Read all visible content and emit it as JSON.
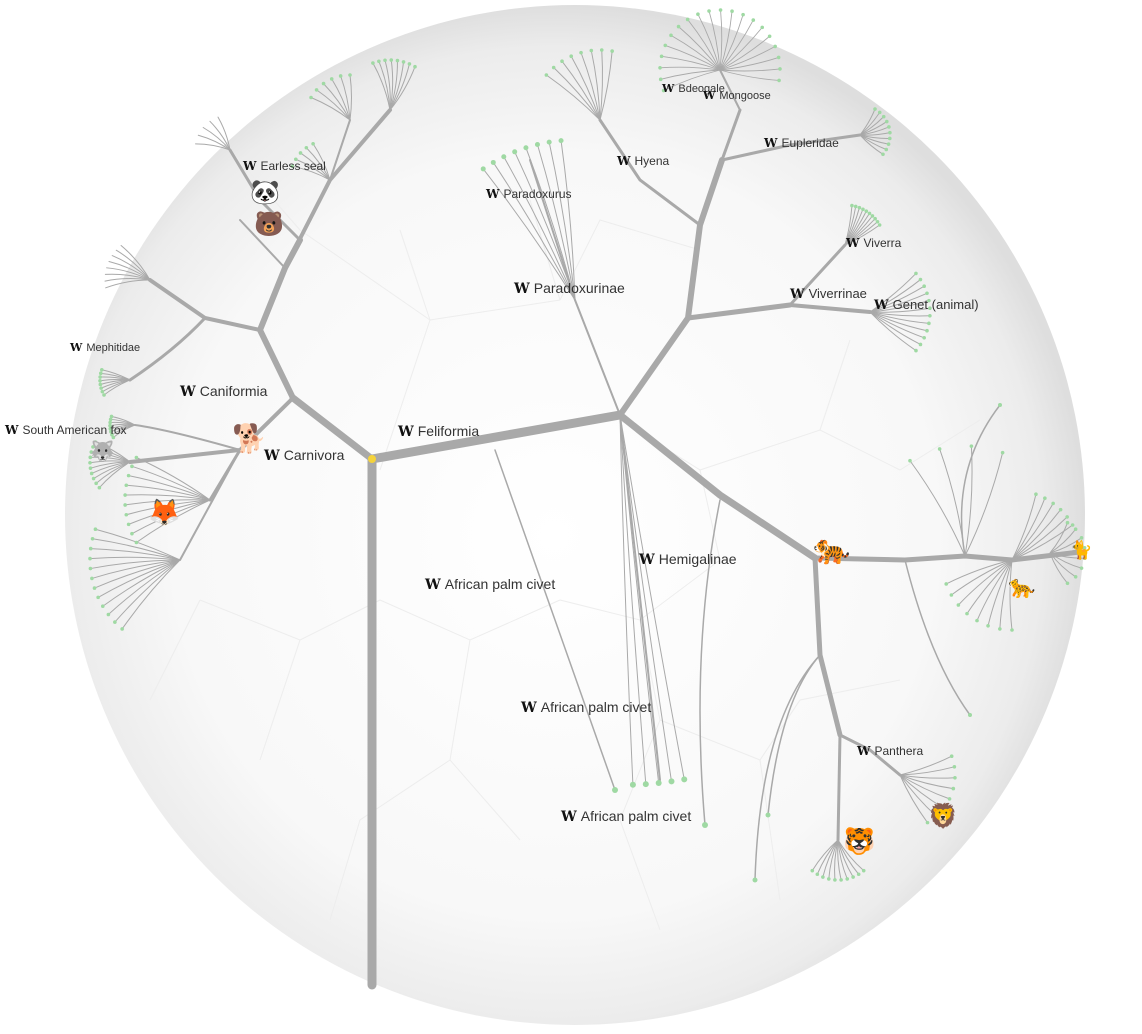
{
  "wiki_mark": "W",
  "labels": {
    "carnivora": "Carnivora",
    "feliformia": "Feliformia",
    "caniformia": "Caniformia",
    "earless_seal": "Earless seal",
    "mephitidae": "Mephitidae",
    "south_american_fox": "South American fox",
    "paradoxurus": "Paradoxurus",
    "paradoxurinae": "Paradoxurinae",
    "hyena": "Hyena",
    "bdeogale": "Bdeogale",
    "mongoose": "Mongoose",
    "eupleridae": "Eupleridae",
    "viverra": "Viverra",
    "viverrinae": "Viverrinae",
    "genet": "Genet (animal)",
    "african_palm_civet_1": "African palm civet",
    "african_palm_civet_2": "African palm civet",
    "african_palm_civet_3": "African palm civet",
    "hemigalinae": "Hemigalinae",
    "panthera": "Panthera"
  },
  "icons": {
    "panda": "🐼",
    "bear": "🐻",
    "dog": "🐕",
    "wolf": "🐺",
    "fox": "🦊",
    "tiger_walking": "🐅",
    "leopard": "🐆",
    "tiger_face": "🐯",
    "lion": "🦁",
    "cat": "🐈"
  },
  "colors": {
    "branch": "#a9a9a9",
    "leaf": "#9fd9a3",
    "root_dot": "#f5d33b",
    "sphere_edge": "#dedede"
  }
}
